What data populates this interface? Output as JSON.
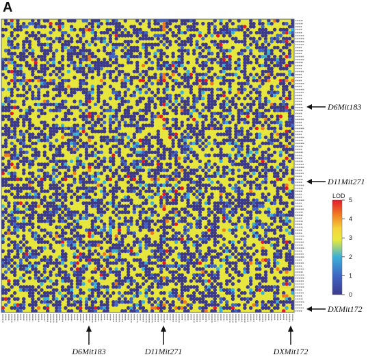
{
  "panel_label": "A",
  "chart_data": {
    "type": "heatmap",
    "grid_rows": 98,
    "grid_cols": 98,
    "value_range": [
      0,
      5
    ],
    "colorbar": {
      "title": "LOD",
      "ticks": [
        0,
        1,
        2,
        3,
        4,
        5
      ],
      "colors": [
        "#3d3a8c",
        "#3f66c4",
        "#3bb0d8",
        "#e9e93a",
        "#f5d33a",
        "#f07a22",
        "#e11b2c"
      ]
    },
    "colors": {
      "low": "#3d3a8c",
      "mid": "#e8e83c",
      "high": "#e11b2c",
      "frame": "#7f8fa6"
    },
    "highlighted_markers": [
      {
        "label": "D6Mit183",
        "row_fraction": 0.205,
        "col_fraction": 0.3
      },
      {
        "label": "D11Mit271",
        "row_fraction": 0.55,
        "col_fraction": 0.555
      },
      {
        "label": "DXMit172",
        "row_fraction": 0.988,
        "col_fraction": 0.98
      }
    ]
  }
}
